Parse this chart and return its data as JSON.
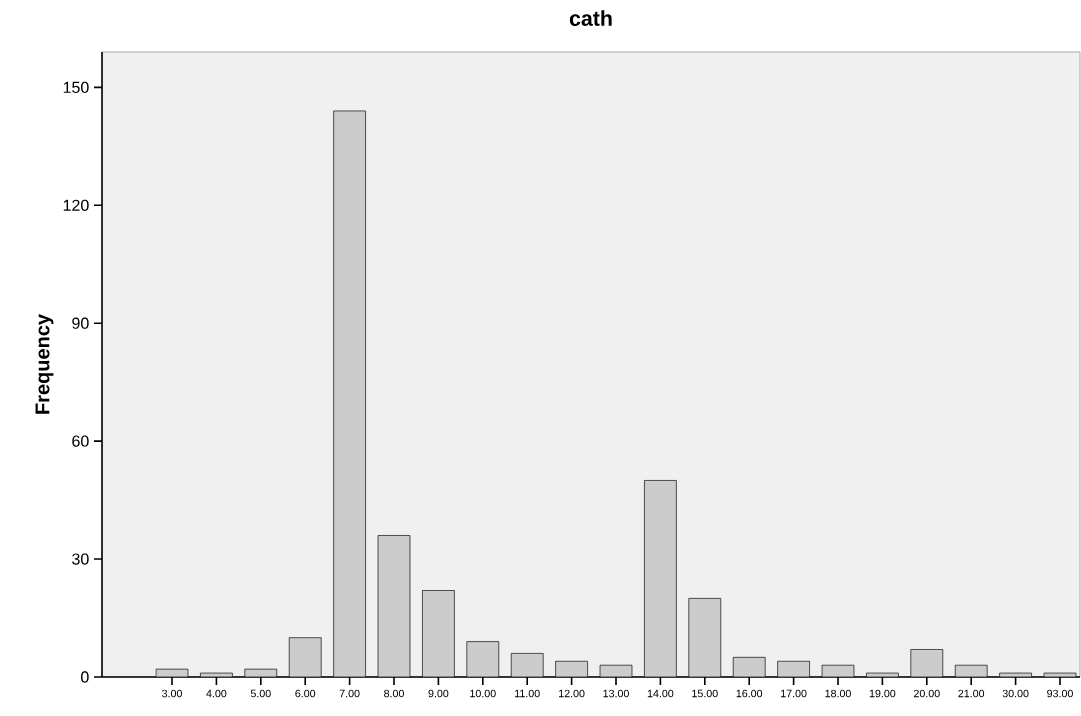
{
  "chart_data": {
    "type": "bar",
    "title": "cath",
    "ylabel": "Frequency",
    "categories": [
      "3.00",
      "4.00",
      "5.00",
      "6.00",
      "7.00",
      "8.00",
      "9.00",
      "10.00",
      "11.00",
      "12.00",
      "13.00",
      "14.00",
      "15.00",
      "16.00",
      "17.00",
      "18.00",
      "19.00",
      "20.00",
      "21.00",
      "30.00",
      "93.00"
    ],
    "values": [
      2,
      1,
      2,
      10,
      144,
      36,
      22,
      9,
      6,
      4,
      3,
      50,
      20,
      5,
      4,
      3,
      1,
      7,
      3,
      1,
      1
    ],
    "color": "#cccccc",
    "ylim": [
      0,
      159
    ],
    "yticks": [
      0,
      30,
      60,
      90,
      120,
      150
    ]
  }
}
